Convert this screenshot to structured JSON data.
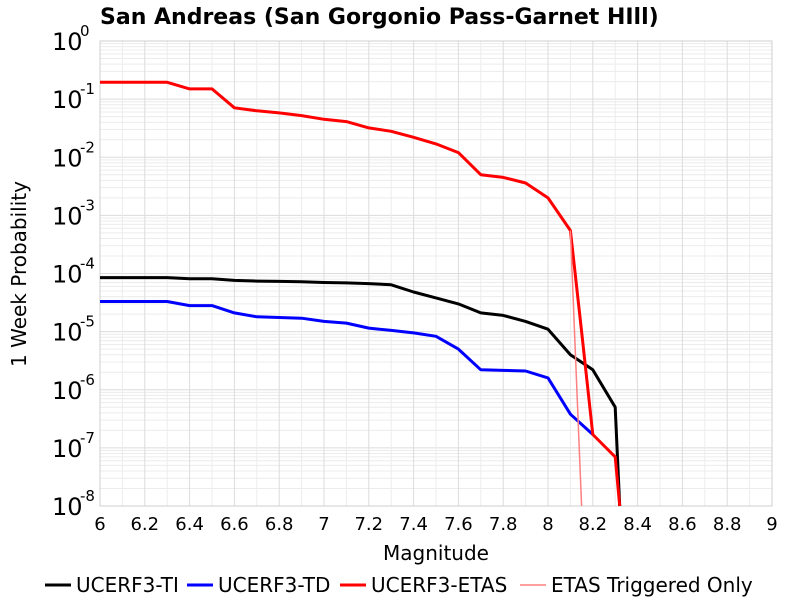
{
  "chart_data": {
    "type": "line",
    "title": "San Andreas (San Gorgonio Pass-Garnet HIll)",
    "xlabel": "Magnitude",
    "ylabel": "1 Week Probability",
    "xlim": [
      6,
      9
    ],
    "ylim_log10": [
      -8,
      0
    ],
    "y_scale": "log",
    "x_ticks": [
      "6",
      "6.2",
      "6.4",
      "6.6",
      "6.8",
      "7",
      "7.2",
      "7.4",
      "7.6",
      "7.8",
      "8",
      "8.2",
      "8.4",
      "8.6",
      "8.8",
      "9"
    ],
    "y_ticks": [
      {
        "base": "10",
        "exp": "0"
      },
      {
        "base": "10",
        "exp": "-1"
      },
      {
        "base": "10",
        "exp": "-2"
      },
      {
        "base": "10",
        "exp": "-3"
      },
      {
        "base": "10",
        "exp": "-4"
      },
      {
        "base": "10",
        "exp": "-5"
      },
      {
        "base": "10",
        "exp": "-6"
      },
      {
        "base": "10",
        "exp": "-7"
      },
      {
        "base": "10",
        "exp": "-8"
      }
    ],
    "grid": true,
    "legend_position": "bottom",
    "series": [
      {
        "name": "UCERF3-TI",
        "color": "#000000",
        "width": 3,
        "x": [
          6.0,
          6.1,
          6.2,
          6.3,
          6.4,
          6.5,
          6.6,
          6.7,
          6.8,
          6.9,
          7.0,
          7.1,
          7.2,
          7.3,
          7.4,
          7.5,
          7.6,
          7.7,
          7.8,
          7.9,
          8.0,
          8.1,
          8.2,
          8.3,
          8.32
        ],
        "y": [
          8.5e-05,
          8.5e-05,
          8.5e-05,
          8.5e-05,
          8.1e-05,
          8.1e-05,
          7.6e-05,
          7.4e-05,
          7.3e-05,
          7.2e-05,
          7e-05,
          6.9e-05,
          6.7e-05,
          6.4e-05,
          4.8e-05,
          3.8e-05,
          3e-05,
          2.1e-05,
          1.9e-05,
          1.5e-05,
          1.1e-05,
          4e-06,
          2.2e-06,
          5e-07,
          1e-08
        ]
      },
      {
        "name": "UCERF3-TD",
        "color": "#0000ff",
        "width": 3,
        "x": [
          6.0,
          6.1,
          6.2,
          6.3,
          6.4,
          6.5,
          6.6,
          6.7,
          6.8,
          6.9,
          7.0,
          7.1,
          7.2,
          7.3,
          7.4,
          7.5,
          7.6,
          7.7,
          7.8,
          7.9,
          8.0,
          8.1,
          8.2
        ],
        "y": [
          3.3e-05,
          3.3e-05,
          3.3e-05,
          3.3e-05,
          2.8e-05,
          2.8e-05,
          2.1e-05,
          1.8e-05,
          1.75e-05,
          1.7e-05,
          1.5e-05,
          1.4e-05,
          1.15e-05,
          1.05e-05,
          9.5e-06,
          8.3e-06,
          5e-06,
          2.2e-06,
          2.15e-06,
          2.1e-06,
          1.6e-06,
          3.8e-07,
          1.7e-07
        ]
      },
      {
        "name": "UCERF3-ETAS",
        "color": "#ff0000",
        "width": 3,
        "x": [
          6.0,
          6.1,
          6.2,
          6.3,
          6.4,
          6.5,
          6.6,
          6.7,
          6.8,
          6.9,
          7.0,
          7.1,
          7.2,
          7.3,
          7.4,
          7.5,
          7.6,
          7.7,
          7.8,
          7.9,
          8.0,
          8.1,
          8.15,
          8.2,
          8.3,
          8.32
        ],
        "y": [
          0.195,
          0.195,
          0.195,
          0.195,
          0.15,
          0.15,
          0.071,
          0.063,
          0.058,
          0.052,
          0.045,
          0.041,
          0.032,
          0.028,
          0.022,
          0.017,
          0.012,
          0.005,
          0.0045,
          0.0036,
          0.002,
          0.00055,
          1e-05,
          1.7e-07,
          7e-08,
          1e-08
        ]
      },
      {
        "name": "ETAS Triggered Only",
        "color": "#ff8080",
        "width": 1.5,
        "x": [
          8.1,
          8.15
        ],
        "y": [
          0.00055,
          1e-08
        ]
      }
    ]
  }
}
